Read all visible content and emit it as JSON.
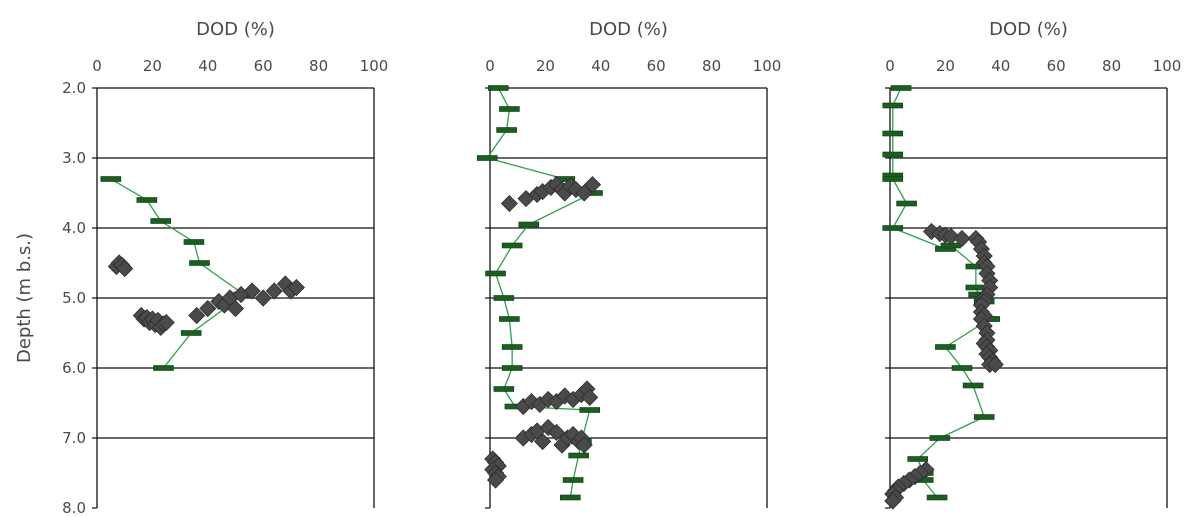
{
  "page_title": "",
  "colors": {
    "measurement": "#4a4a4a",
    "model": "#2e9e4f",
    "bar": "#1b5e20",
    "axis": "#111111"
  },
  "chart_data": [
    {
      "type": "scatter",
      "title": "",
      "xlabel": "DOD (%)",
      "ylabel": "Depth (m b.s.)",
      "xlim": [
        0,
        100
      ],
      "ylim": [
        2.0,
        8.0
      ],
      "xticks": [
        "0",
        "20",
        "40",
        "60",
        "80",
        "100"
      ],
      "yticks": [
        "2.0",
        "3.0",
        "4.0",
        "5.0",
        "6.0",
        "7.0",
        "8.0"
      ],
      "grid": "horizontal",
      "series": [
        {
          "x": [
            7,
            8,
            9,
            10,
            16,
            17,
            18,
            19,
            20,
            21,
            22,
            23,
            24,
            25,
            36,
            40,
            44,
            46,
            48,
            50,
            52,
            56,
            60,
            64,
            68,
            70,
            72
          ],
          "y": [
            4.55,
            4.5,
            4.53,
            4.58,
            5.25,
            5.3,
            5.28,
            5.35,
            5.3,
            5.38,
            5.32,
            5.42,
            5.37,
            5.35,
            5.25,
            5.15,
            5.05,
            5.1,
            5.0,
            5.15,
            4.95,
            4.9,
            5.0,
            4.9,
            4.8,
            4.9,
            4.85
          ]
        },
        {
          "x": [
            5,
            18,
            23,
            35,
            37,
            53,
            34,
            24
          ],
          "y": [
            3.3,
            3.6,
            3.9,
            4.2,
            4.5,
            4.95,
            5.5,
            6.0
          ]
        }
      ]
    },
    {
      "type": "scatter",
      "title": "",
      "xlabel": "DOD (%)",
      "ylabel": "",
      "xlim": [
        0,
        100
      ],
      "ylim": [
        2.0,
        8.0
      ],
      "xticks": [
        "0",
        "20",
        "40",
        "60",
        "80",
        "100"
      ],
      "yticks": [],
      "grid": "horizontal",
      "series": [
        {
          "x": [
            7,
            13,
            17,
            19,
            22,
            24,
            26,
            27,
            29,
            31,
            34,
            37,
            12,
            15,
            18,
            21,
            24,
            27,
            30,
            33,
            35,
            36,
            12,
            15,
            17,
            19,
            21,
            24,
            26,
            28,
            30,
            32,
            33,
            34,
            1,
            2,
            3,
            1,
            2,
            3,
            2
          ],
          "y": [
            3.65,
            3.58,
            3.52,
            3.48,
            3.42,
            3.38,
            3.45,
            3.5,
            3.4,
            3.45,
            3.5,
            3.38,
            6.55,
            6.48,
            6.52,
            6.45,
            6.48,
            6.4,
            6.45,
            6.38,
            6.3,
            6.42,
            7.0,
            6.95,
            6.9,
            7.05,
            6.85,
            6.92,
            7.1,
            7.0,
            6.95,
            7.05,
            7.0,
            7.1,
            7.3,
            7.35,
            7.4,
            7.45,
            7.5,
            7.55,
            7.6
          ]
        },
        {
          "x": [
            3,
            7,
            6,
            -1,
            27,
            37,
            14,
            8,
            2,
            5,
            7,
            8,
            8,
            5,
            9,
            36,
            33,
            32,
            30,
            29
          ],
          "y": [
            2.0,
            2.3,
            2.6,
            3.0,
            3.3,
            3.5,
            3.95,
            4.25,
            4.65,
            5.0,
            5.3,
            5.7,
            6.0,
            6.3,
            6.55,
            6.6,
            7.05,
            7.25,
            7.6,
            7.85
          ]
        }
      ]
    },
    {
      "type": "scatter",
      "title": "",
      "xlabel": "DOD (%)",
      "ylabel": "",
      "xlim": [
        0,
        100
      ],
      "ylim": [
        2.0,
        8.0
      ],
      "xticks": [
        "0",
        "20",
        "40",
        "60",
        "80",
        "100"
      ],
      "yticks": [],
      "grid": "horizontal",
      "series": [
        {
          "x": [
            15,
            18,
            20,
            22,
            26,
            31,
            32,
            33,
            34,
            34,
            35,
            35,
            36,
            36,
            35,
            34,
            34,
            33,
            33,
            34,
            33,
            34,
            35,
            35,
            34,
            35,
            36,
            35,
            36,
            37,
            36,
            38,
            13,
            11,
            9,
            7,
            5,
            3,
            2,
            1,
            2,
            1
          ],
          "y": [
            4.05,
            4.08,
            4.1,
            4.12,
            4.15,
            4.15,
            4.2,
            4.3,
            4.4,
            4.5,
            4.55,
            4.65,
            4.75,
            4.85,
            4.95,
            5.0,
            5.05,
            5.1,
            5.2,
            5.25,
            5.3,
            5.4,
            5.5,
            5.6,
            5.65,
            5.7,
            5.75,
            5.8,
            5.85,
            5.9,
            5.95,
            5.95,
            7.45,
            7.5,
            7.55,
            7.6,
            7.65,
            7.7,
            7.75,
            7.8,
            7.85,
            7.9
          ]
        },
        {
          "x": [
            4,
            1,
            1,
            1,
            1,
            1,
            6,
            1,
            20,
            22,
            31,
            31,
            32,
            34,
            35,
            36,
            20,
            26,
            30,
            34,
            18,
            10,
            12,
            12,
            17
          ],
          "y": [
            2.0,
            2.25,
            2.65,
            2.95,
            3.25,
            3.3,
            3.65,
            4.0,
            4.3,
            4.25,
            4.55,
            4.85,
            4.95,
            5.05,
            5.3,
            5.3,
            5.7,
            6.0,
            6.25,
            6.7,
            7.0,
            7.3,
            7.5,
            7.6,
            7.85
          ]
        }
      ]
    }
  ]
}
